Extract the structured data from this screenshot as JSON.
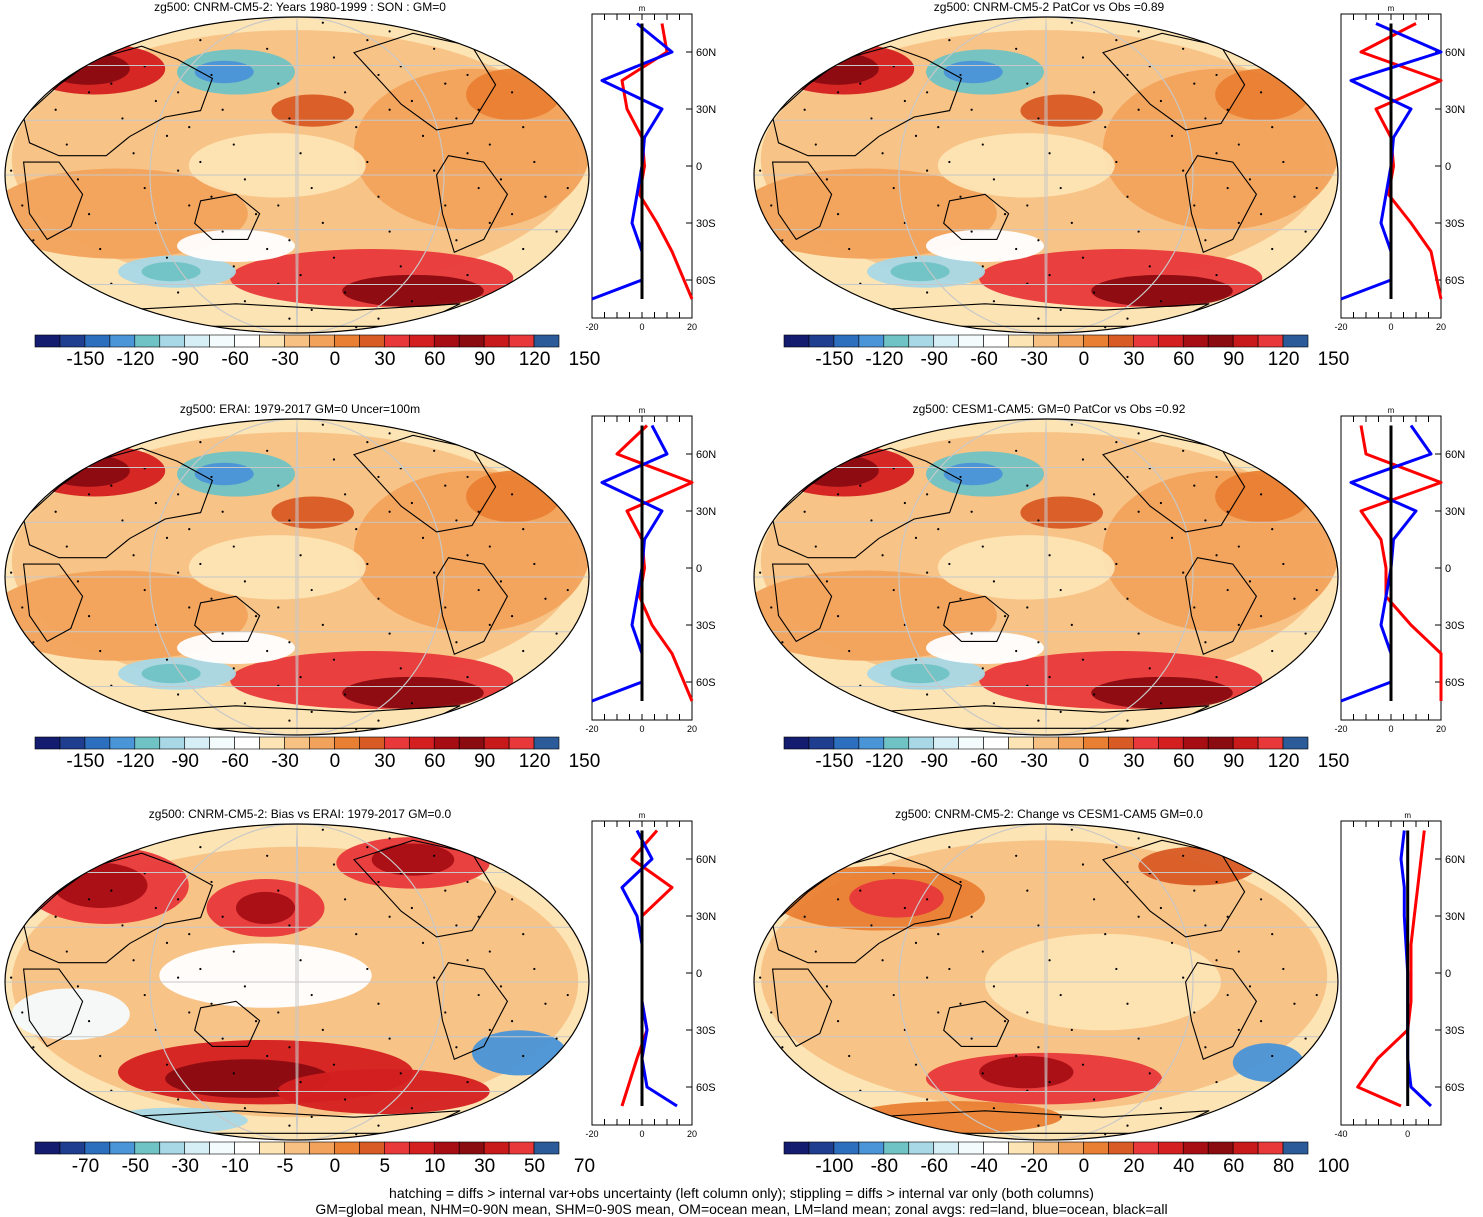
{
  "colors": {
    "scale": [
      "#131c6e",
      "#203e8f",
      "#2d6fbf",
      "#4a94d8",
      "#6fc3c4",
      "#a8d8e6",
      "#d6eef5",
      "#f4fbfd",
      "#ffffff",
      "#fde4b4",
      "#f8c184",
      "#f2a25b",
      "#e97f33",
      "#d85a24",
      "#e8383a",
      "#d41f20",
      "#a70e14",
      "#8a0b10",
      "#c81a1b",
      "#e8383a",
      "#2b5c99"
    ],
    "land_line": "#000000",
    "grid": "#c8c8c8",
    "profile_land": "#ff0000",
    "profile_ocean": "#0000ff",
    "profile_all": "#000000"
  },
  "panels": [
    {
      "id": "p1",
      "title": "zg500: CNRM-CM5-2: Years 1980-1999 : SON : GM=0",
      "colorbar_labels": [
        "-150",
        "-120",
        "-90",
        "-60",
        "-30",
        "0",
        "30",
        "60",
        "90",
        "120",
        "150"
      ],
      "profile": {
        "units": "m",
        "lat_labels": [
          "60N",
          "30N",
          "0",
          "30S",
          "60S"
        ],
        "x_ticks": [
          "-20",
          "0",
          "20"
        ]
      }
    },
    {
      "id": "p2",
      "title": "zg500: CNRM-CM5-2 PatCor vs Obs =0.89",
      "colorbar_labels": [
        "-150",
        "-120",
        "-90",
        "-60",
        "-30",
        "0",
        "30",
        "60",
        "90",
        "120",
        "150"
      ],
      "profile": {
        "units": "m",
        "lat_labels": [
          "60N",
          "30N",
          "0",
          "30S",
          "60S"
        ],
        "x_ticks": [
          "-20",
          "0",
          "20"
        ]
      }
    },
    {
      "id": "p3",
      "title": "zg500: ERAI: 1979-2017 GM=0 Uncer=100m",
      "colorbar_labels": [
        "-150",
        "-120",
        "-90",
        "-60",
        "-30",
        "0",
        "30",
        "60",
        "90",
        "120",
        "150"
      ],
      "profile": {
        "units": "m",
        "lat_labels": [
          "60N",
          "30N",
          "0",
          "30S",
          "60S"
        ],
        "x_ticks": [
          "-20",
          "0",
          "20"
        ]
      }
    },
    {
      "id": "p4",
      "title": "zg500: CESM1-CAM5: GM=0 PatCor vs Obs =0.92",
      "colorbar_labels": [
        "-150",
        "-120",
        "-90",
        "-60",
        "-30",
        "0",
        "30",
        "60",
        "90",
        "120",
        "150"
      ],
      "profile": {
        "units": "m",
        "lat_labels": [
          "60N",
          "30N",
          "0",
          "30S",
          "60S"
        ],
        "x_ticks": [
          "-20",
          "0",
          "20"
        ]
      }
    },
    {
      "id": "p5",
      "title": "zg500: CNRM-CM5-2: Bias vs ERAI: 1979-2017  GM=0.0",
      "colorbar_labels": [
        "-70",
        "-50",
        "-30",
        "-10",
        "-5",
        "0",
        "5",
        "10",
        "30",
        "50",
        "70"
      ],
      "profile": {
        "units": "m",
        "lat_labels": [
          "60N",
          "30N",
          "0",
          "30S",
          "60S"
        ],
        "x_ticks": [
          "-20",
          "0",
          "20"
        ]
      }
    },
    {
      "id": "p6",
      "title": "zg500: CNRM-CM5-2: Change vs CESM1-CAM5 GM=0.0",
      "colorbar_labels": [
        "-100",
        "-80",
        "-60",
        "-40",
        "-20",
        "0",
        "20",
        "40",
        "60",
        "80",
        "100"
      ],
      "profile": {
        "units": "m",
        "lat_labels": [
          "60N",
          "30N",
          "0",
          "30S",
          "60S"
        ],
        "x_ticks": [
          "-40",
          "0"
        ]
      }
    }
  ],
  "footer": {
    "line1": "hatching = diffs > internal var+obs uncertainty (left column only); stippling = diffs > internal var only (both columns)",
    "line2": "GM=global mean, NHM=0-90N mean, SHM=0-90S mean, OM=ocean mean, LM=land mean; zonal avgs: red=land, blue=ocean, black=all"
  },
  "chart_data": [
    {
      "type": "heatmap",
      "title": "zg500: CNRM-CM5-2: Years 1980-1999 : SON : GM=0",
      "colorbar": [
        -150,
        -120,
        -90,
        -60,
        -30,
        0,
        30,
        60,
        90,
        120,
        150
      ],
      "zonal_profile": {
        "units": "m",
        "xlim": [
          -20,
          20
        ],
        "lat": [
          75,
          60,
          45,
          30,
          15,
          0,
          -15,
          -30,
          -45,
          -60,
          -70
        ],
        "land": [
          8,
          10,
          -8,
          -6,
          0,
          1,
          -1,
          6,
          12,
          null,
          20
        ],
        "ocean": [
          -2,
          12,
          -16,
          8,
          1,
          0,
          -2,
          -4,
          0,
          0,
          -20
        ],
        "all": [
          0,
          0,
          0,
          0,
          0,
          0,
          0,
          0,
          0,
          0,
          0
        ]
      }
    },
    {
      "type": "heatmap",
      "title": "zg500: CNRM-CM5-2 PatCor vs Obs =0.89",
      "colorbar": [
        -150,
        -120,
        -90,
        -60,
        -30,
        0,
        30,
        60,
        90,
        120,
        150
      ],
      "zonal_profile": {
        "units": "m",
        "xlim": [
          -20,
          20
        ],
        "lat": [
          75,
          60,
          45,
          30,
          15,
          0,
          -15,
          -30,
          -45,
          -60,
          -70
        ],
        "land": [
          10,
          -12,
          20,
          -6,
          0,
          1,
          -1,
          8,
          16,
          null,
          20
        ],
        "ocean": [
          -6,
          20,
          -16,
          8,
          1,
          0,
          -2,
          -4,
          0,
          0,
          -20
        ],
        "all": [
          0,
          0,
          0,
          0,
          0,
          0,
          0,
          0,
          0,
          0,
          0
        ]
      }
    },
    {
      "type": "heatmap",
      "title": "zg500: ERAI: 1979-2017 GM=0 Uncer=100m",
      "colorbar": [
        -150,
        -120,
        -90,
        -60,
        -30,
        0,
        30,
        60,
        90,
        120,
        150
      ],
      "zonal_profile": {
        "units": "m",
        "xlim": [
          -20,
          20
        ],
        "lat": [
          75,
          60,
          45,
          30,
          15,
          0,
          -15,
          -30,
          -45,
          -60,
          -70
        ],
        "land": [
          2,
          -10,
          20,
          -6,
          0,
          1,
          -1,
          4,
          12,
          null,
          20
        ],
        "ocean": [
          4,
          10,
          -16,
          8,
          1,
          0,
          -2,
          -4,
          0,
          0,
          -20
        ],
        "all": [
          0,
          0,
          0,
          0,
          0,
          0,
          0,
          0,
          0,
          0,
          0
        ]
      }
    },
    {
      "type": "heatmap",
      "title": "zg500: CESM1-CAM5: GM=0 PatCor vs Obs =0.92",
      "colorbar": [
        -150,
        -120,
        -90,
        -60,
        -30,
        0,
        30,
        60,
        90,
        120,
        150
      ],
      "zonal_profile": {
        "units": "m",
        "xlim": [
          -20,
          20
        ],
        "lat": [
          75,
          60,
          45,
          30,
          15,
          0,
          -15,
          -30,
          -45,
          -60,
          -70
        ],
        "land": [
          -12,
          -10,
          20,
          -12,
          -4,
          -2,
          -2,
          8,
          20,
          null,
          20
        ],
        "ocean": [
          8,
          16,
          -16,
          10,
          1,
          0,
          -2,
          -4,
          0,
          0,
          -20
        ],
        "all": [
          0,
          0,
          0,
          0,
          0,
          0,
          0,
          0,
          0,
          0,
          0
        ]
      }
    },
    {
      "type": "heatmap",
      "title": "zg500: CNRM-CM5-2: Bias vs ERAI: 1979-2017  GM=0.0",
      "colorbar": [
        -70,
        -50,
        -30,
        -10,
        -5,
        0,
        5,
        10,
        30,
        50,
        70
      ],
      "zonal_profile": {
        "units": "m",
        "xlim": [
          -20,
          20
        ],
        "lat": [
          75,
          60,
          45,
          30,
          15,
          0,
          -15,
          -30,
          -45,
          -60,
          -70
        ],
        "land": [
          6,
          -4,
          12,
          0,
          0,
          0,
          0,
          2,
          -2,
          null,
          -8
        ],
        "ocean": [
          -2,
          4,
          -8,
          -2,
          0,
          0,
          0,
          2,
          0,
          2,
          14
        ],
        "all": [
          0,
          0,
          0,
          0,
          0,
          0,
          0,
          0,
          0,
          0,
          0
        ]
      }
    },
    {
      "type": "heatmap",
      "title": "zg500: CNRM-CM5-2: Change vs CESM1-CAM5 GM=0.0",
      "colorbar": [
        -100,
        -80,
        -60,
        -40,
        -20,
        0,
        20,
        40,
        60,
        80,
        100
      ],
      "zonal_profile": {
        "units": "m",
        "xlim": [
          -40,
          20
        ],
        "lat": [
          75,
          60,
          45,
          30,
          15,
          0,
          -15,
          -30,
          -45,
          -60,
          -70
        ],
        "land": [
          10,
          8,
          6,
          4,
          2,
          2,
          2,
          0,
          -18,
          -30,
          -4
        ],
        "ocean": [
          -2,
          -4,
          -2,
          -2,
          -1,
          0,
          0,
          0,
          0,
          2,
          14
        ],
        "all": [
          0,
          0,
          0,
          0,
          0,
          0,
          0,
          0,
          0,
          0,
          0
        ]
      }
    }
  ]
}
